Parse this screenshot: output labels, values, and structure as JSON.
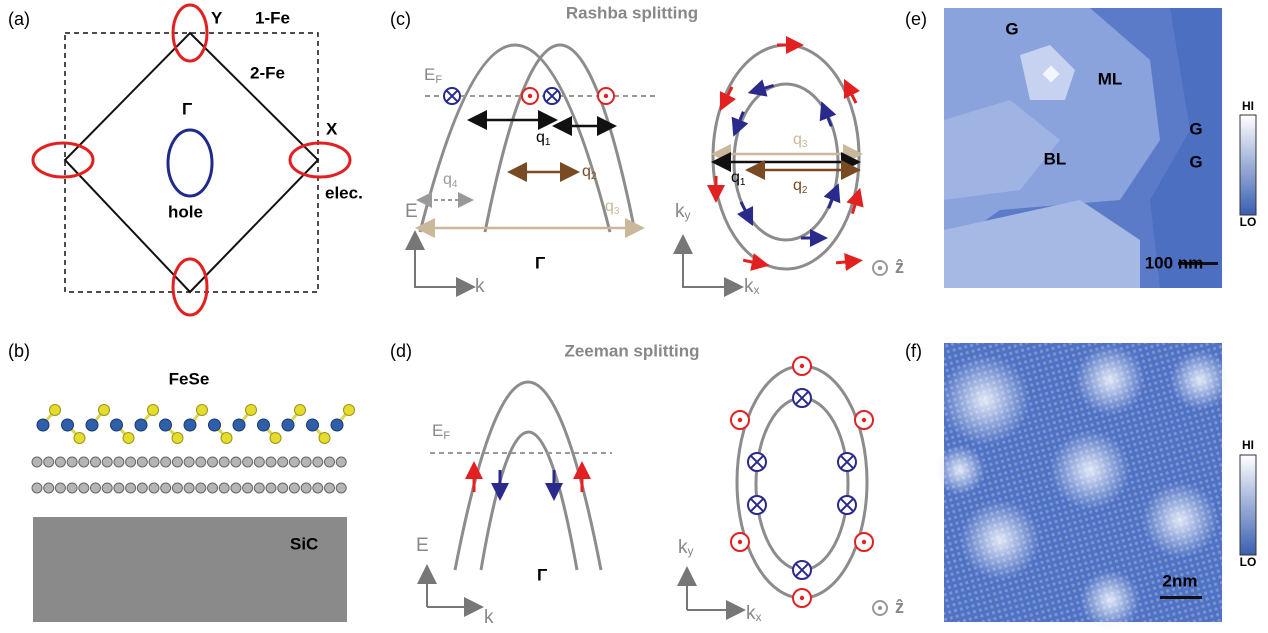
{
  "panels": {
    "a": {
      "label": "(a)",
      "y": "Y",
      "one_fe": "1-Fe",
      "two_fe": "2-Fe",
      "gamma": "Γ",
      "x": "X",
      "hole": "hole",
      "elec": "elec."
    },
    "b": {
      "label": "(b)",
      "fese": "FeSe",
      "sic": "SiC"
    },
    "c": {
      "label": "(c)",
      "title": "Rashba splitting",
      "ef": {
        "main": "E",
        "sub": "F"
      },
      "q1": {
        "main": "q",
        "sub": "1"
      },
      "q2": {
        "main": "q",
        "sub": "2"
      },
      "q3": {
        "main": "q",
        "sub": "3"
      },
      "q4": {
        "main": "q",
        "sub": "4"
      },
      "e_axis": "E",
      "k_axis": "k",
      "gamma": "Γ",
      "q3_right": {
        "main": "q",
        "sub": "3"
      },
      "q1_right": {
        "main": "q",
        "sub": "1"
      },
      "q2_right": {
        "main": "q",
        "sub": "2"
      },
      "ky": {
        "main": "k",
        "sub": "y"
      },
      "kx": {
        "main": "k",
        "sub": "x"
      },
      "z": "ẑ"
    },
    "d": {
      "label": "(d)",
      "title": "Zeeman splitting",
      "ef": {
        "main": "E",
        "sub": "F"
      },
      "e_axis": "E",
      "k_axis": "k",
      "gamma": "Γ",
      "ky": {
        "main": "k",
        "sub": "y"
      },
      "kx": {
        "main": "k",
        "sub": "x"
      },
      "z": "ẑ"
    },
    "e": {
      "label": "(e)",
      "regions": [
        "G",
        "ML",
        "G",
        "BL",
        "G"
      ],
      "hi": "HI",
      "lo": "LO",
      "scale": "100 nm"
    },
    "f": {
      "label": "(f)",
      "hi": "HI",
      "lo": "LO",
      "scale": "2nm"
    }
  }
}
